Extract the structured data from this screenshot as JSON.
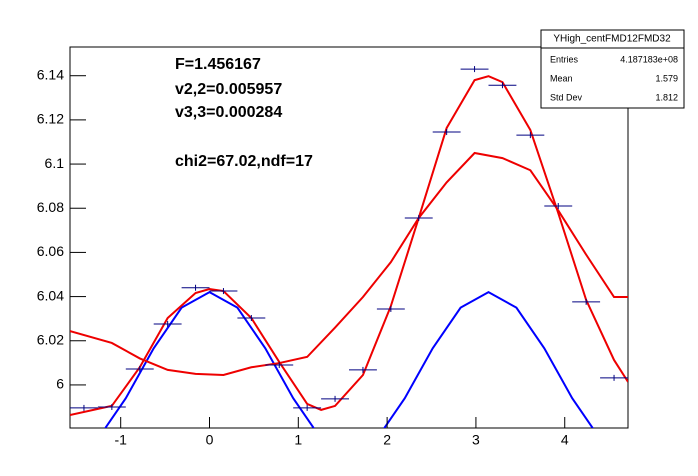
{
  "chart_data": {
    "type": "line",
    "annotations": [
      "F=1.456167",
      "v2,2=0.005957",
      "v3,3=0.000284",
      "chi2=67.02,ndf=17"
    ],
    "stats": {
      "title": "YHigh_centFMD12FMD32",
      "rows": [
        [
          "Entries",
          "4.187183e+08"
        ],
        [
          "Mean",
          "1.579"
        ],
        [
          "Std Dev",
          "1.812"
        ]
      ]
    },
    "xlim": [
      -1.5708,
      4.7124
    ],
    "ylim": [
      5.9805,
      6.153
    ],
    "xticks": [
      -1,
      0,
      1,
      2,
      3,
      4
    ],
    "yticks": [
      6,
      6.02,
      6.04,
      6.06,
      6.08,
      6.1,
      6.12,
      6.14
    ],
    "histogram": {
      "color": "#000080",
      "bins": [
        -1.5708,
        -1.2566,
        -0.9425,
        -0.6283,
        -0.3142,
        0,
        0.3142,
        0.6283,
        0.9425,
        1.2566,
        1.5708,
        1.885,
        2.1991,
        2.5133,
        2.8274,
        3.1416,
        3.4558,
        3.7699,
        4.0841,
        4.3982,
        4.7124
      ],
      "values": [
        5.9896,
        5.99,
        6.0072,
        6.0276,
        6.044,
        6.0425,
        6.0303,
        6.009,
        5.9896,
        5.9937,
        6.0068,
        6.0344,
        6.0756,
        6.1145,
        6.143,
        6.1357,
        6.1131,
        6.081,
        6.0376,
        6.0032
      ]
    },
    "series": [
      {
        "color": "#0000ff",
        "x": [
          -1.5708,
          -1.2566,
          -0.9425,
          -0.6283,
          -0.3142,
          0,
          0.3142,
          0.6283,
          0.9425,
          1.2566,
          1.5708,
          1.885,
          2.1991,
          2.5133,
          2.8274,
          3.1416,
          3.4558,
          3.7699,
          4.0841,
          4.3982,
          4.7124
        ],
        "values": [
          5.9686,
          5.9756,
          5.994,
          6.0166,
          6.035,
          6.042,
          6.035,
          6.0166,
          5.994,
          5.9756,
          5.9686,
          5.9756,
          5.994,
          6.0166,
          6.035,
          6.042,
          6.035,
          6.0166,
          5.994,
          5.9756,
          5.9686
        ]
      },
      {
        "color": "#ee0000",
        "x": [
          -1.5708,
          -1.1,
          -0.785,
          -0.471,
          -0.157,
          0.157,
          0.471,
          0.785,
          1.1,
          1.414,
          1.728,
          2.042,
          2.356,
          2.67,
          2.985,
          3.299,
          3.613,
          3.927,
          4.241,
          4.555,
          4.7124
        ],
        "values": [
          6.0244,
          6.019,
          6.012,
          6.0068,
          6.005,
          6.0045,
          6.008,
          6.0099,
          6.0127,
          6.026,
          6.0398,
          6.0556,
          6.0756,
          6.0917,
          6.105,
          6.1027,
          6.0972,
          6.079,
          6.059,
          6.0398,
          6.0398
        ]
      },
      {
        "color": "#ee0000",
        "x": [
          -1.5708,
          -1.1,
          -0.785,
          -0.471,
          -0.157,
          0,
          0.157,
          0.471,
          0.785,
          1.1,
          1.257,
          1.414,
          1.728,
          2.042,
          2.356,
          2.67,
          2.985,
          3.142,
          3.299,
          3.613,
          3.927,
          4.241,
          4.555,
          4.7124
        ],
        "values": [
          5.9864,
          5.9905,
          6.008,
          6.0303,
          6.0416,
          6.0434,
          6.0425,
          6.0303,
          6.0104,
          5.9914,
          5.9887,
          5.9905,
          6.0045,
          6.0357,
          6.0756,
          6.1163,
          6.138,
          6.1398,
          6.1371,
          6.1154,
          6.0778,
          6.0385,
          6.0113,
          6.0014
        ]
      }
    ]
  }
}
